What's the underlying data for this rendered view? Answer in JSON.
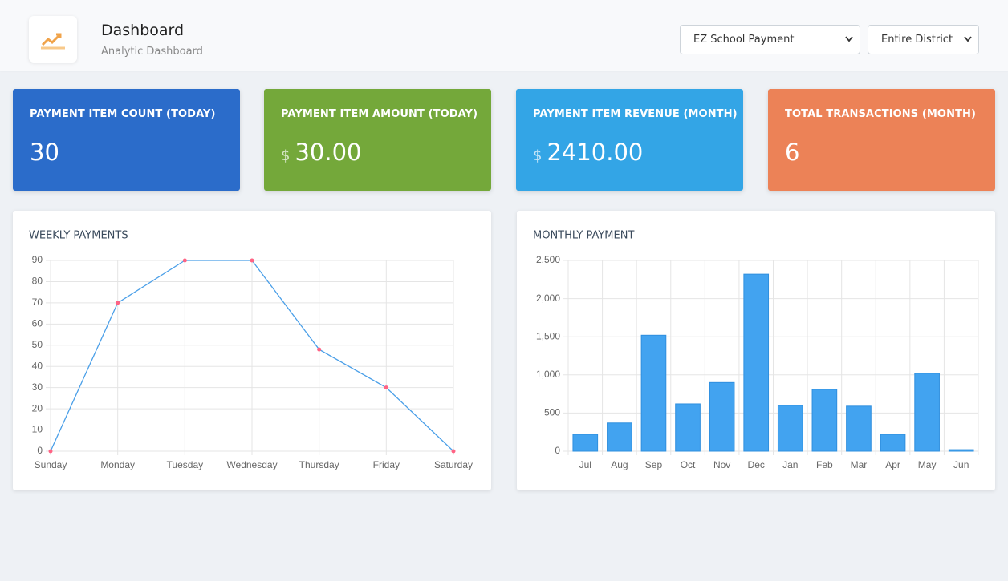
{
  "header": {
    "title": "Dashboard",
    "subtitle": "Analytic Dashboard"
  },
  "selects": [
    "EZ School Payment",
    "Entire District"
  ],
  "cards": [
    {
      "title": "PAYMENT ITEM COUNT (TODAY)",
      "value": "30",
      "color": "#2b6cca"
    },
    {
      "title": "PAYMENT ITEM AMOUNT (TODAY)",
      "currency": "$",
      "value": "30.00",
      "color": "#74a83a"
    },
    {
      "title": "PAYMENT ITEM REVENUE (MONTH)",
      "currency": "$",
      "value": "2410.00",
      "color": "#33a5e6"
    },
    {
      "title": "TOTAL TRANSACTIONS (MONTH)",
      "value": "6",
      "color": "#ec8257"
    }
  ],
  "chart_data": [
    {
      "type": "line",
      "title": "WEEKLY PAYMENTS",
      "categories": [
        "Sunday",
        "Monday",
        "Tuesday",
        "Wednesday",
        "Thursday",
        "Friday",
        "Saturday"
      ],
      "values": [
        0,
        70,
        90,
        90,
        48,
        30,
        0
      ],
      "color": "#4a9fe8",
      "point_color": "#ff6384",
      "ylim": [
        0,
        90
      ],
      "yticks": [
        0,
        10,
        20,
        30,
        40,
        50,
        60,
        70,
        80,
        90
      ],
      "grid": true
    },
    {
      "type": "bar",
      "title": "MONTHLY PAYMENT",
      "categories": [
        "Jul",
        "Aug",
        "Sep",
        "Oct",
        "Nov",
        "Dec",
        "Jan",
        "Feb",
        "Mar",
        "Apr",
        "May",
        "Jun"
      ],
      "values": [
        220,
        370,
        1520,
        620,
        900,
        2320,
        600,
        810,
        590,
        220,
        1020,
        20
      ],
      "color": "#42a3f0",
      "ylim": [
        0,
        2500
      ],
      "yticks": [
        0,
        500,
        {
          "value": 1000,
          "label": "1,000"
        },
        {
          "value": 1500,
          "label": "1,500"
        },
        {
          "value": 2000,
          "label": "2,000"
        },
        {
          "value": 2500,
          "label": "2,500"
        }
      ],
      "grid": true
    }
  ]
}
